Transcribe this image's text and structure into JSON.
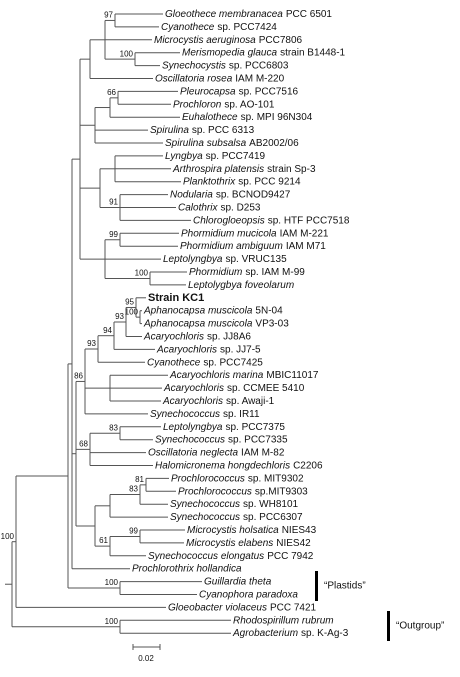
{
  "leaves": [
    {
      "italic": "Gloeothece membranacea",
      "text": "PCC 6501"
    },
    {
      "italic": "Cyanothece",
      "text": "sp. PCC7424"
    },
    {
      "italic": "Microcystis aeruginosa",
      "text": "PCC7806"
    },
    {
      "italic": "Merismopedia glauca",
      "text": "strain B1448-1"
    },
    {
      "italic": "Synechocystis",
      "text": "sp. PCC6803"
    },
    {
      "italic": "Oscillatoria rosea",
      "text": "IAM M-220"
    },
    {
      "italic": "Pleurocapsa",
      "text": "sp. PCC7516"
    },
    {
      "italic": "Prochloron",
      "text": "sp. AO-101"
    },
    {
      "italic": "Euhalothece",
      "text": "sp. MPI 96N304"
    },
    {
      "italic": "Spirulina",
      "text": "sp. PCC 6313"
    },
    {
      "italic": "Spirulina subsalsa",
      "text": "AB2002/06"
    },
    {
      "italic": "Lyngbya",
      "text": "sp. PCC7419"
    },
    {
      "italic": "Arthrospira platensis",
      "text": "strain Sp-3"
    },
    {
      "italic": "Planktothrix",
      "text": "sp. PCC 9214"
    },
    {
      "italic": "Nodularia",
      "text": "sp. BCNOD9427"
    },
    {
      "italic": "Calothrix",
      "text": "sp. D253"
    },
    {
      "italic": "Chlorogloeopsis",
      "text": "sp. HTF PCC7518"
    },
    {
      "italic": "Phormidium mucicola",
      "text": "IAM M-221"
    },
    {
      "italic": "Phormidium ambiguum",
      "text": "IAM M71"
    },
    {
      "italic": "Leptolyngbya",
      "text": "sp. VRUC135"
    },
    {
      "italic": "Phormidium",
      "text": "sp. IAM M-99"
    },
    {
      "italic": "Leptolygbya foveolarum"
    },
    {
      "bold": "Strain KC1"
    },
    {
      "italic": "Aphanocapsa muscicola",
      "text": "5N-04"
    },
    {
      "italic": "Aphanocapsa muscicola",
      "text": "VP3-03"
    },
    {
      "italic": "Acaryochloris",
      "text": "sp. JJ8A6"
    },
    {
      "italic": "Acaryochloris",
      "text": "sp. JJ7-5"
    },
    {
      "italic": "Cyanothece",
      "text": "sp. PCC7425"
    },
    {
      "italic": "Acaryochloris marina",
      "text": "MBIC11017"
    },
    {
      "italic": "Acaryochloris",
      "text": "sp. CCMEE 5410"
    },
    {
      "italic": "Acaryochloris",
      "text": "sp. Awaji-1"
    },
    {
      "italic": "Synechococcus",
      "text": "sp. IR11"
    },
    {
      "italic": "Leptolyngbya",
      "text": "sp. PCC7375"
    },
    {
      "italic": "Synechococcus",
      "text": "sp. PCC7335"
    },
    {
      "italic": "Oscillatoria neglecta",
      "text": "IAM M-82"
    },
    {
      "italic": "Halomicronema hongdechloris",
      "text": "C2206"
    },
    {
      "italic": "Prochlorococcus",
      "text": "sp. MIT9302"
    },
    {
      "italic": "Prochlorococcus",
      "text": "sp.MIT9303"
    },
    {
      "italic": "Synechococcus",
      "text": "sp. WH8101"
    },
    {
      "italic": "Synechococcus",
      "text": "sp. PCC6307"
    },
    {
      "italic": "Microcystis holsatica",
      "text": "NIES43"
    },
    {
      "italic": "Microcystis elabens",
      "text": "NIES42"
    },
    {
      "italic": "Synechococcus elongatus",
      "text": "PCC 7942"
    },
    {
      "italic": "Prochlorothrix hollandica"
    },
    {
      "italic": "Guillardia theta"
    },
    {
      "italic": "Cyanophora paradoxa"
    },
    {
      "italic": "Gloeobacter violaceus",
      "text": "PCC 7421"
    },
    {
      "italic": "Rhodospirillum rubrum"
    },
    {
      "italic": "Agrobacterium",
      "text": "sp. K-Ag-3"
    }
  ],
  "bootstrap_values": [
    97,
    100,
    66,
    91,
    99,
    100,
    95,
    93,
    100,
    94,
    93,
    86,
    83,
    68,
    83,
    81,
    99,
    61,
    100,
    100,
    100
  ],
  "groups": {
    "plastids": "“Plastids”",
    "outgroup": "“Outgroup”"
  },
  "scale_bar": "0.02"
}
